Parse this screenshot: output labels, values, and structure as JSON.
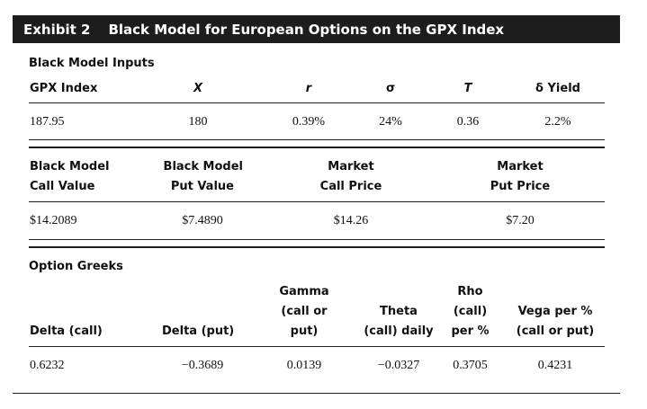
{
  "exhibit": {
    "number": "Exhibit 2",
    "title": "Black Model for European Options on the GPX Index"
  },
  "inputs": {
    "section_title": "Black Model Inputs",
    "headers": [
      "GPX Index",
      "X",
      "r",
      "σ",
      "T",
      "δ Yield"
    ],
    "values": [
      "187.95",
      "180",
      "0.39%",
      "24%",
      "0.36",
      "2.2%"
    ]
  },
  "values_table": {
    "headers": [
      [
        "Black Model",
        "Call Value"
      ],
      [
        "Black Model",
        "Put Value"
      ],
      [
        "Market",
        "Call Price"
      ],
      [
        "Market",
        "Put Price"
      ]
    ],
    "values": [
      "$14.2089",
      "$7.4890",
      "$14.26",
      "$7.20"
    ]
  },
  "greeks": {
    "section_title": "Option Greeks",
    "headers": [
      [
        "Delta (call)"
      ],
      [
        "Delta (put)"
      ],
      [
        "Gamma",
        "(call or",
        "put)"
      ],
      [
        "Theta",
        "(call) daily"
      ],
      [
        "Rho",
        "(call)",
        "per %"
      ],
      [
        "Vega per %",
        "(call or put)"
      ]
    ],
    "values": [
      "0.6232",
      "−0.3689",
      "0.0139",
      "−0.0327",
      "0.3705",
      "0.4231"
    ]
  }
}
